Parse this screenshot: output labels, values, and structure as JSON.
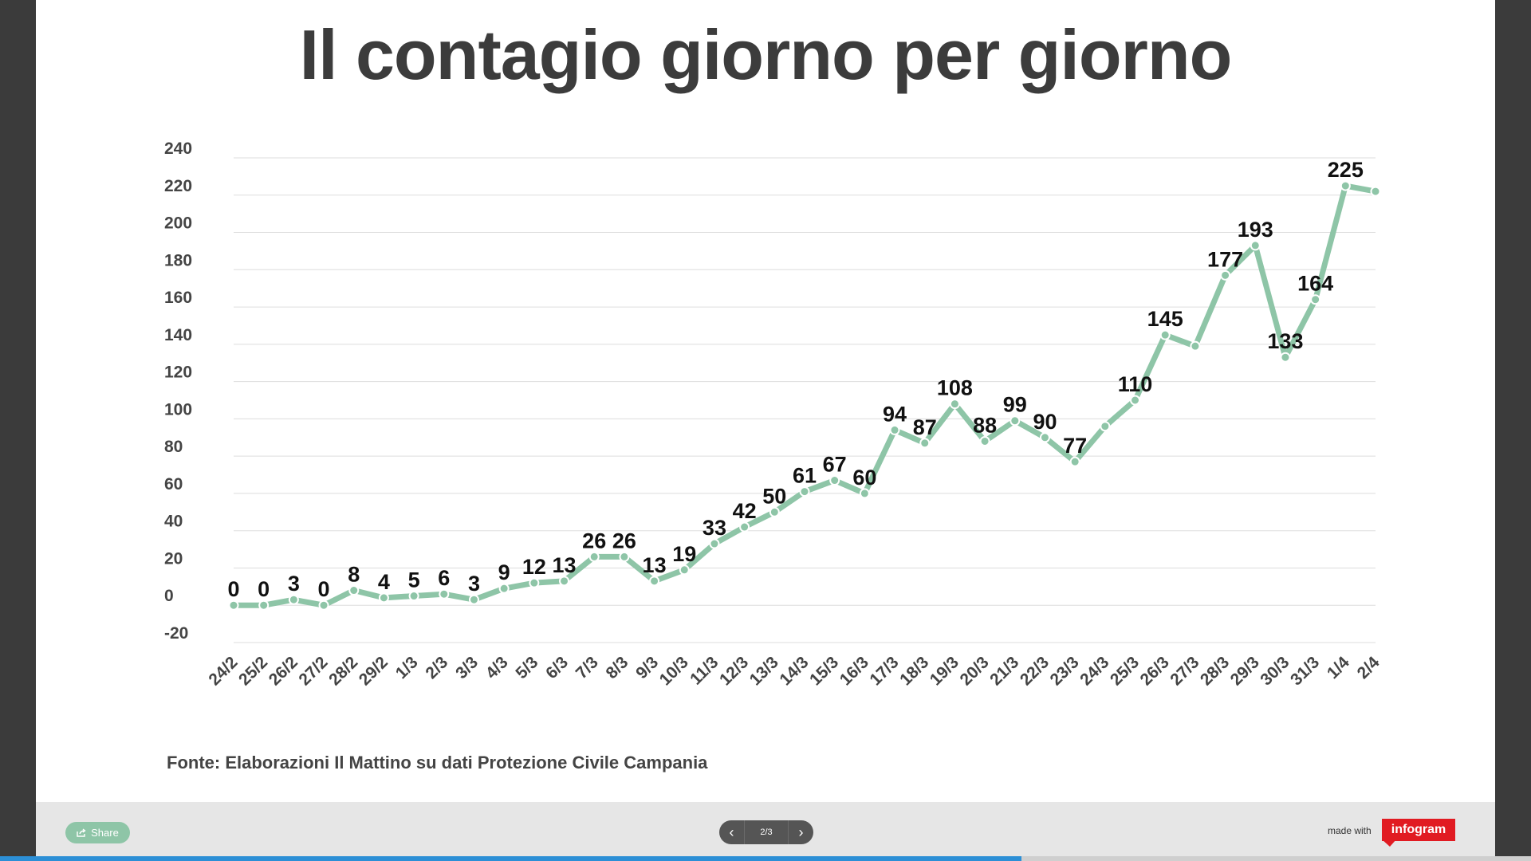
{
  "chart_data": {
    "type": "line",
    "title": "Il contagio giorno per giorno",
    "xlabel": "",
    "ylabel": "",
    "ylim": [
      -20,
      240
    ],
    "yticks": [
      240,
      220,
      200,
      180,
      160,
      140,
      120,
      100,
      80,
      60,
      40,
      20,
      0,
      -20
    ],
    "grid": true,
    "line_color": "#8ec5a7",
    "categories": [
      "24/2",
      "25/2",
      "26/2",
      "27/2",
      "28/2",
      "29/2",
      "1/3",
      "2/3",
      "3/3",
      "4/3",
      "5/3",
      "6/3",
      "7/3",
      "8/3",
      "9/3",
      "10/3",
      "11/3",
      "12/3",
      "13/3",
      "14/3",
      "15/3",
      "16/3",
      "17/3",
      "18/3",
      "19/3",
      "20/3",
      "21/3",
      "22/3",
      "23/3",
      "24/3",
      "25/3",
      "26/3",
      "27/3",
      "28/3",
      "29/3",
      "30/3",
      "31/3",
      "1/4",
      "2/4"
    ],
    "values": [
      0,
      0,
      3,
      0,
      8,
      4,
      5,
      6,
      3,
      9,
      12,
      13,
      26,
      26,
      13,
      19,
      33,
      42,
      50,
      61,
      67,
      60,
      94,
      87,
      108,
      88,
      99,
      90,
      77,
      96,
      110,
      145,
      139,
      177,
      193,
      133,
      164,
      225,
      222
    ],
    "data_labels": [
      "0",
      "0",
      "3",
      "0",
      "8",
      "4",
      "5",
      "6",
      "3",
      "9",
      "12",
      "13",
      "26",
      "26",
      "13",
      "19",
      "33",
      "42",
      "50",
      "61",
      "67",
      "60",
      "94",
      "87",
      "108",
      "88",
      "99",
      "90",
      "77",
      "",
      "110",
      "145",
      "",
      "177",
      "193",
      "133",
      "164",
      "225",
      ""
    ]
  },
  "source": "Fonte: Elaborazioni Il Mattino su dati Protezione Civile Campania",
  "footer": {
    "share_label": "Share",
    "page_indicator": "2/3",
    "made_with": "made with",
    "brand": "infogram",
    "progress": 0.667
  }
}
